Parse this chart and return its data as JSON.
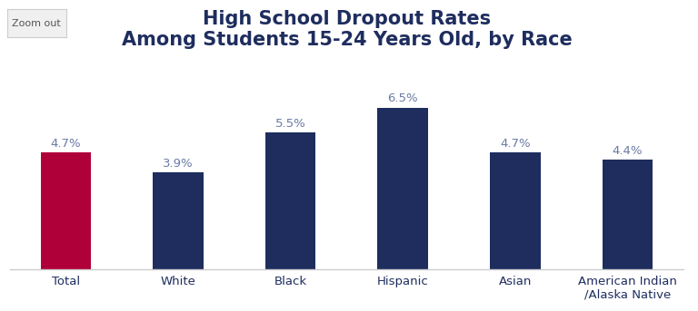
{
  "title_line1": "High School Dropout Rates",
  "title_line2": "Among Students 15-24 Years Old, by Race",
  "categories": [
    "Total",
    "White",
    "Black",
    "Hispanic",
    "Asian",
    "American Indian\n/Alaska Native"
  ],
  "values": [
    4.7,
    3.9,
    5.5,
    6.5,
    4.7,
    4.4
  ],
  "bar_colors": [
    "#B0003A",
    "#1E2D5E",
    "#1E2D5E",
    "#1E2D5E",
    "#1E2D5E",
    "#1E2D5E"
  ],
  "label_color": "#6B7BA4",
  "title_color": "#1E2D5E",
  "background_color": "#ffffff",
  "ylim": [
    0,
    8.5
  ],
  "bar_width": 0.45,
  "label_fontsize": 9.5,
  "title_fontsize": 15,
  "tick_fontsize": 9.5,
  "zoom_out_text": "Zoom out",
  "zoom_out_fontsize": 8
}
